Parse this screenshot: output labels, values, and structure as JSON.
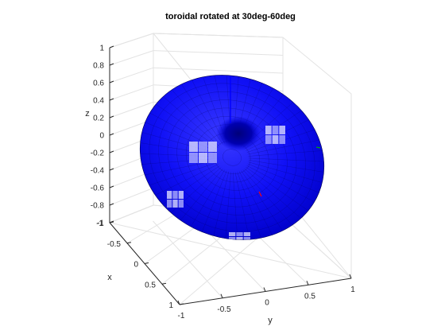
{
  "chart_data": {
    "type": "surface3d",
    "title": "toroidal rotated at 30deg-60deg",
    "xlabel": "x",
    "ylabel": "y",
    "zlabel": "z",
    "xlim": [
      -1,
      1
    ],
    "ylim": [
      -1,
      1
    ],
    "zlim": [
      -1,
      1
    ],
    "x_ticks": [
      "-1",
      "-0.5",
      "0",
      "0.5",
      "1"
    ],
    "y_ticks": [
      "-1",
      "-0.5",
      "0",
      "0.5",
      "1"
    ],
    "z_ticks": [
      "-1",
      "-0.8",
      "-0.6",
      "-0.4",
      "-0.2",
      "0",
      "0.2",
      "0.4",
      "0.6",
      "0.8",
      "1"
    ],
    "grid": true,
    "surface": {
      "shape": "toroidal (r = sin^2(theta))",
      "rotation_deg": [
        30,
        60
      ],
      "color": "#0000ff",
      "edge_color": "#000000"
    },
    "axis_markers": {
      "z_axis_color": "#0000ff",
      "x_axis_color": "#ff0000",
      "y_axis_color": "#00aa00"
    }
  }
}
